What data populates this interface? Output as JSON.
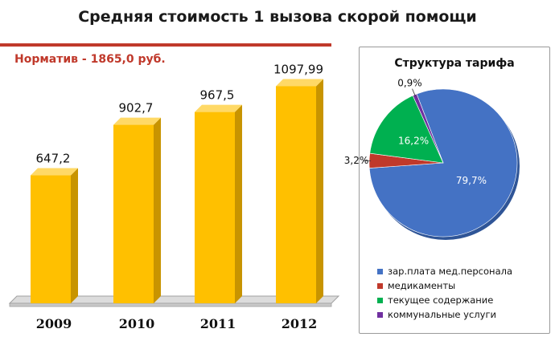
{
  "title": "Средняя стоимость 1 вызова скорой помощи",
  "standard_note": "Норматив  - 1865,0 руб.",
  "colors": {
    "accent_red": "#c0392b",
    "bar_front": "#ffc000",
    "bar_side": "#c89400",
    "bar_top": "#ffd966"
  },
  "chart_data": [
    {
      "type": "bar",
      "categories": [
        "2009",
        "2010",
        "2011",
        "2012"
      ],
      "values": [
        647.2,
        902.7,
        967.5,
        1097.99
      ],
      "data_labels": [
        "647,2",
        "902,7",
        "967,5",
        "1097,99"
      ],
      "ylim": [
        0,
        1250
      ],
      "grid": false,
      "style": "3d"
    },
    {
      "type": "pie",
      "title": "Структура тарифа",
      "slices": [
        {
          "label": "зар.плата мед.персонала",
          "value": 79.7,
          "value_label": "79,7%",
          "color": "#4472c4"
        },
        {
          "label": "медикаменты",
          "value": 3.2,
          "value_label": "3,2%",
          "color": "#c0392b"
        },
        {
          "label": "текущее содержание",
          "value": 16.2,
          "value_label": "16,2%",
          "color": "#00b050"
        },
        {
          "label": "коммунальные услуги",
          "value": 0.9,
          "value_label": "0,9%",
          "color": "#7030a0"
        }
      ],
      "legend_position": "bottom"
    }
  ]
}
